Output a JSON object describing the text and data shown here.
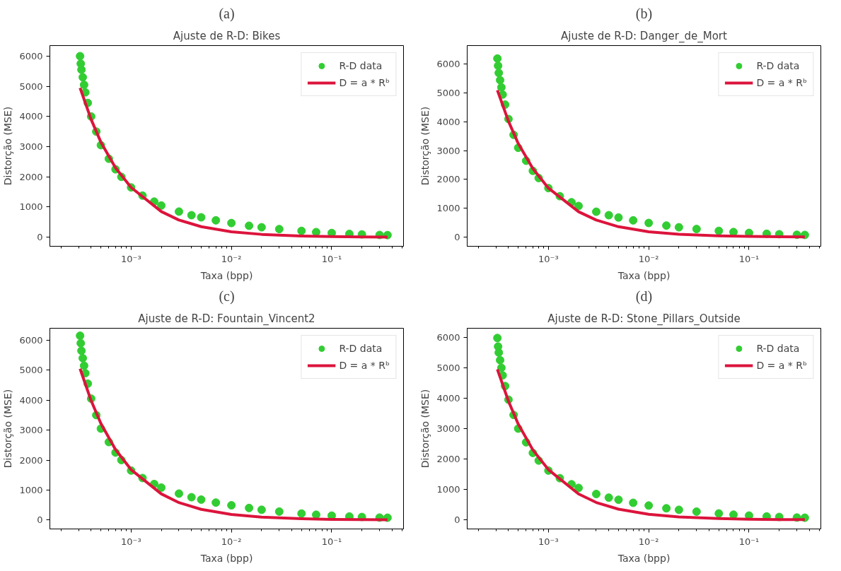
{
  "chart_data": [
    {
      "type": "scatter",
      "annotations": [
        "(a)"
      ],
      "title": "Ajuste de R-D: Bikes",
      "xlabel": "Taxa (bpp)",
      "ylabel": "Distorção (MSE)",
      "log": "x",
      "grid": false,
      "legend": "top right",
      "marker": "circle",
      "xlim": [
        0.000155,
        0.52
      ],
      "ylim": [
        -300,
        6350
      ],
      "xticks": [
        {
          "value": 0.001,
          "label": "10⁻³"
        },
        {
          "value": 0.01,
          "label": "10⁻²"
        },
        {
          "value": 0.1,
          "label": "10⁻¹"
        }
      ],
      "yticks": [
        0,
        1000,
        2000,
        3000,
        4000,
        5000,
        6000
      ],
      "series": [
        {
          "name": "R-D data",
          "color": "#32cd32",
          "x": [
            0.00031,
            0.000315,
            0.00032,
            0.00033,
            0.00034,
            0.00035,
            0.00037,
            0.0004,
            0.00045,
            0.0005,
            0.0006,
            0.0007,
            0.0008,
            0.001,
            0.0013,
            0.0017,
            0.002,
            0.003,
            0.004,
            0.005,
            0.007,
            0.01,
            0.015,
            0.02,
            0.03,
            0.05,
            0.07,
            0.1,
            0.15,
            0.2,
            0.3,
            0.36
          ],
          "values": [
            6000,
            5750,
            5550,
            5300,
            5050,
            4800,
            4450,
            4000,
            3500,
            3050,
            2600,
            2250,
            2000,
            1650,
            1380,
            1180,
            1050,
            850,
            730,
            660,
            560,
            470,
            380,
            330,
            270,
            210,
            170,
            140,
            110,
            95,
            75,
            70
          ]
        },
        {
          "name": "D = a * Rᵇ",
          "type": "line",
          "marker": "none",
          "color": "#dc143c",
          "x": [
            0.00031,
            0.0004,
            0.0005,
            0.0007,
            0.001,
            0.002,
            0.003,
            0.005,
            0.01,
            0.02,
            0.05,
            0.1,
            0.2,
            0.36
          ],
          "values": [
            4950,
            3900,
            3150,
            2300,
            1650,
            850,
            570,
            350,
            180,
            95,
            40,
            20,
            10,
            6
          ]
        }
      ]
    },
    {
      "type": "scatter",
      "annotations": [
        "(b)"
      ],
      "title": "Ajuste de R-D: Danger_de_Mort",
      "xlabel": "Taxa (bpp)",
      "ylabel": "Distorção (MSE)",
      "log": "x",
      "grid": false,
      "legend": "top right",
      "marker": "circle",
      "xlim": [
        0.000155,
        0.52
      ],
      "ylim": [
        -320,
        6650
      ],
      "xticks": [
        {
          "value": 0.001,
          "label": "10⁻³"
        },
        {
          "value": 0.01,
          "label": "10⁻²"
        },
        {
          "value": 0.1,
          "label": "10⁻¹"
        }
      ],
      "yticks": [
        0,
        1000,
        2000,
        3000,
        4000,
        5000,
        6000
      ],
      "series": [
        {
          "name": "R-D data",
          "color": "#32cd32",
          "x": [
            0.00031,
            0.000315,
            0.00032,
            0.00033,
            0.00034,
            0.00035,
            0.00037,
            0.0004,
            0.00045,
            0.0005,
            0.0006,
            0.0007,
            0.0008,
            0.001,
            0.0013,
            0.0017,
            0.002,
            0.003,
            0.004,
            0.005,
            0.007,
            0.01,
            0.015,
            0.02,
            0.03,
            0.05,
            0.07,
            0.1,
            0.15,
            0.2,
            0.3,
            0.36
          ],
          "values": [
            6200,
            5950,
            5700,
            5450,
            5200,
            4950,
            4600,
            4100,
            3550,
            3100,
            2650,
            2300,
            2050,
            1700,
            1420,
            1210,
            1080,
            880,
            760,
            680,
            580,
            490,
            400,
            340,
            280,
            215,
            175,
            145,
            115,
            100,
            80,
            75
          ]
        },
        {
          "name": "D = a * Rᵇ",
          "type": "line",
          "marker": "none",
          "color": "#dc143c",
          "x": [
            0.00031,
            0.0004,
            0.0005,
            0.0007,
            0.001,
            0.002,
            0.003,
            0.005,
            0.01,
            0.02,
            0.05,
            0.1,
            0.2,
            0.36
          ],
          "values": [
            5100,
            4020,
            3250,
            2380,
            1700,
            880,
            590,
            360,
            185,
            98,
            42,
            21,
            11,
            6
          ]
        }
      ]
    },
    {
      "type": "scatter",
      "annotations": [
        "(c)"
      ],
      "title": "Ajuste de R-D: Fountain_Vincent2",
      "xlabel": "Taxa (bpp)",
      "ylabel": "Distorção (MSE)",
      "log": "x",
      "grid": false,
      "legend": "top right",
      "marker": "circle",
      "xlim": [
        0.000155,
        0.52
      ],
      "ylim": [
        -300,
        6400
      ],
      "xticks": [
        {
          "value": 0.001,
          "label": "10⁻³"
        },
        {
          "value": 0.01,
          "label": "10⁻²"
        },
        {
          "value": 0.1,
          "label": "10⁻¹"
        }
      ],
      "yticks": [
        0,
        1000,
        2000,
        3000,
        4000,
        5000,
        6000
      ],
      "series": [
        {
          "name": "R-D data",
          "color": "#32cd32",
          "x": [
            0.00031,
            0.000315,
            0.00032,
            0.00033,
            0.00034,
            0.00035,
            0.00037,
            0.0004,
            0.00045,
            0.0005,
            0.0006,
            0.0007,
            0.0008,
            0.001,
            0.0013,
            0.0017,
            0.002,
            0.003,
            0.004,
            0.005,
            0.007,
            0.01,
            0.015,
            0.02,
            0.03,
            0.05,
            0.07,
            0.1,
            0.15,
            0.2,
            0.3,
            0.36
          ],
          "values": [
            6150,
            5900,
            5650,
            5400,
            5150,
            4900,
            4550,
            4050,
            3500,
            3050,
            2600,
            2250,
            2000,
            1650,
            1400,
            1200,
            1080,
            880,
            760,
            680,
            580,
            490,
            400,
            340,
            280,
            215,
            175,
            145,
            115,
            100,
            80,
            75
          ]
        },
        {
          "name": "D = a * Rᵇ",
          "type": "line",
          "marker": "none",
          "color": "#dc143c",
          "x": [
            0.00031,
            0.0004,
            0.0005,
            0.0007,
            0.001,
            0.002,
            0.003,
            0.005,
            0.01,
            0.02,
            0.05,
            0.1,
            0.2,
            0.36
          ],
          "values": [
            5050,
            3980,
            3220,
            2350,
            1680,
            870,
            580,
            355,
            182,
            96,
            41,
            20,
            10,
            6
          ]
        }
      ]
    },
    {
      "type": "scatter",
      "annotations": [
        "(d)"
      ],
      "title": "Ajuste de R-D: Stone_Pillars_Outside",
      "xlabel": "Taxa (bpp)",
      "ylabel": "Distorção (MSE)",
      "log": "x",
      "grid": false,
      "legend": "top right",
      "marker": "circle",
      "xlim": [
        0.000155,
        0.52
      ],
      "ylim": [
        -300,
        6300
      ],
      "xticks": [
        {
          "value": 0.001,
          "label": "10⁻³"
        },
        {
          "value": 0.01,
          "label": "10⁻²"
        },
        {
          "value": 0.1,
          "label": "10⁻¹"
        }
      ],
      "yticks": [
        0,
        1000,
        2000,
        3000,
        4000,
        5000,
        6000
      ],
      "series": [
        {
          "name": "R-D data",
          "color": "#32cd32",
          "x": [
            0.00031,
            0.000315,
            0.00032,
            0.00033,
            0.00034,
            0.00035,
            0.00037,
            0.0004,
            0.00045,
            0.0005,
            0.0006,
            0.0007,
            0.0008,
            0.001,
            0.0013,
            0.0017,
            0.002,
            0.003,
            0.004,
            0.005,
            0.007,
            0.01,
            0.015,
            0.02,
            0.03,
            0.05,
            0.07,
            0.1,
            0.15,
            0.2,
            0.3,
            0.36
          ],
          "values": [
            5980,
            5700,
            5500,
            5250,
            5000,
            4750,
            4400,
            3950,
            3450,
            3000,
            2550,
            2200,
            1950,
            1620,
            1370,
            1170,
            1050,
            850,
            730,
            660,
            560,
            470,
            380,
            330,
            270,
            210,
            170,
            140,
            110,
            95,
            75,
            70
          ]
        },
        {
          "name": "D = a * Rᵇ",
          "type": "line",
          "marker": "none",
          "color": "#dc143c",
          "x": [
            0.00031,
            0.0004,
            0.0005,
            0.0007,
            0.001,
            0.002,
            0.003,
            0.005,
            0.01,
            0.02,
            0.05,
            0.1,
            0.2,
            0.36
          ],
          "values": [
            4950,
            3900,
            3150,
            2300,
            1650,
            850,
            570,
            350,
            180,
            95,
            40,
            20,
            10,
            6
          ]
        }
      ]
    }
  ]
}
